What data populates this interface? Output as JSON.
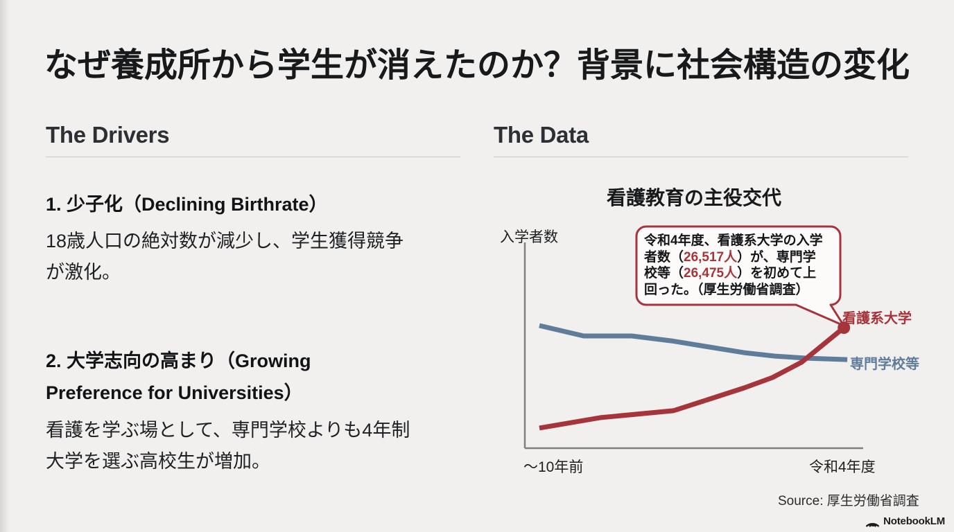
{
  "slide": {
    "title": "なぜ養成所から学生が消えたのか？背景に社会構造の変化"
  },
  "colors": {
    "red": "#A5343B",
    "blue": "#5F7D9B"
  },
  "left_panel": {
    "heading": "The Drivers",
    "drivers": [
      {
        "heading_lines": [
          "1. 少子化（Declining Birthrate）",
          ""
        ],
        "body_lines": [
          "18歳人口の絶対数が減少し、学生獲得競争",
          "が激化。"
        ]
      },
      {
        "heading_lines": [
          "2. 大学志向の高まり（Growing",
          "Preference for Universities）"
        ],
        "body_lines": [
          "看護を学ぶ場として、専門学校よりも4年制",
          "大学を選ぶ高校生が増加。"
        ]
      }
    ]
  },
  "right_panel": {
    "heading": "The Data",
    "source": "Source: 厚生労働省調査"
  },
  "footer": {
    "brand": "NotebookLM"
  },
  "chart_data": {
    "type": "line",
    "title": "看護教育の主役交代",
    "ylabel": "入学者数",
    "xlabel": "",
    "x_tick_labels": [
      "～10年前",
      "令和4年度"
    ],
    "grid": false,
    "legend_position": "right-of-line-ends",
    "y_axis_numeric_labels": false,
    "series": [
      {
        "name": "専門学校等",
        "color": "#5F7D9B",
        "end_value_label": "26,475人",
        "points_pct_of_plot": [
          [
            4.3,
            60.2
          ],
          [
            17.4,
            55.1
          ],
          [
            31.6,
            55.1
          ],
          [
            43.4,
            52.7
          ],
          [
            53.3,
            50.0
          ],
          [
            64.8,
            46.9
          ],
          [
            74.0,
            45.2
          ],
          [
            83.4,
            44.2
          ],
          [
            95.3,
            43.5
          ]
        ]
      },
      {
        "name": "看護系大学",
        "color": "#A5343B",
        "end_value_label": "26,517人",
        "end_dot": true,
        "points_pct_of_plot": [
          [
            4.3,
            9.9
          ],
          [
            22.3,
            15.0
          ],
          [
            43.9,
            18.4
          ],
          [
            55.3,
            24.5
          ],
          [
            64.8,
            29.6
          ],
          [
            73.2,
            34.7
          ],
          [
            81.8,
            42.2
          ],
          [
            94.3,
            59.2
          ]
        ]
      }
    ],
    "callout": {
      "lines": [
        [
          "令和4年度、看護系大学の入学"
        ],
        [
          "者数（",
          "26,517人",
          "）が、専門学"
        ],
        [
          "校等（",
          "26,475人",
          "）を初めて上"
        ],
        [
          "回った。（厚生労働省調査）"
        ]
      ]
    }
  }
}
